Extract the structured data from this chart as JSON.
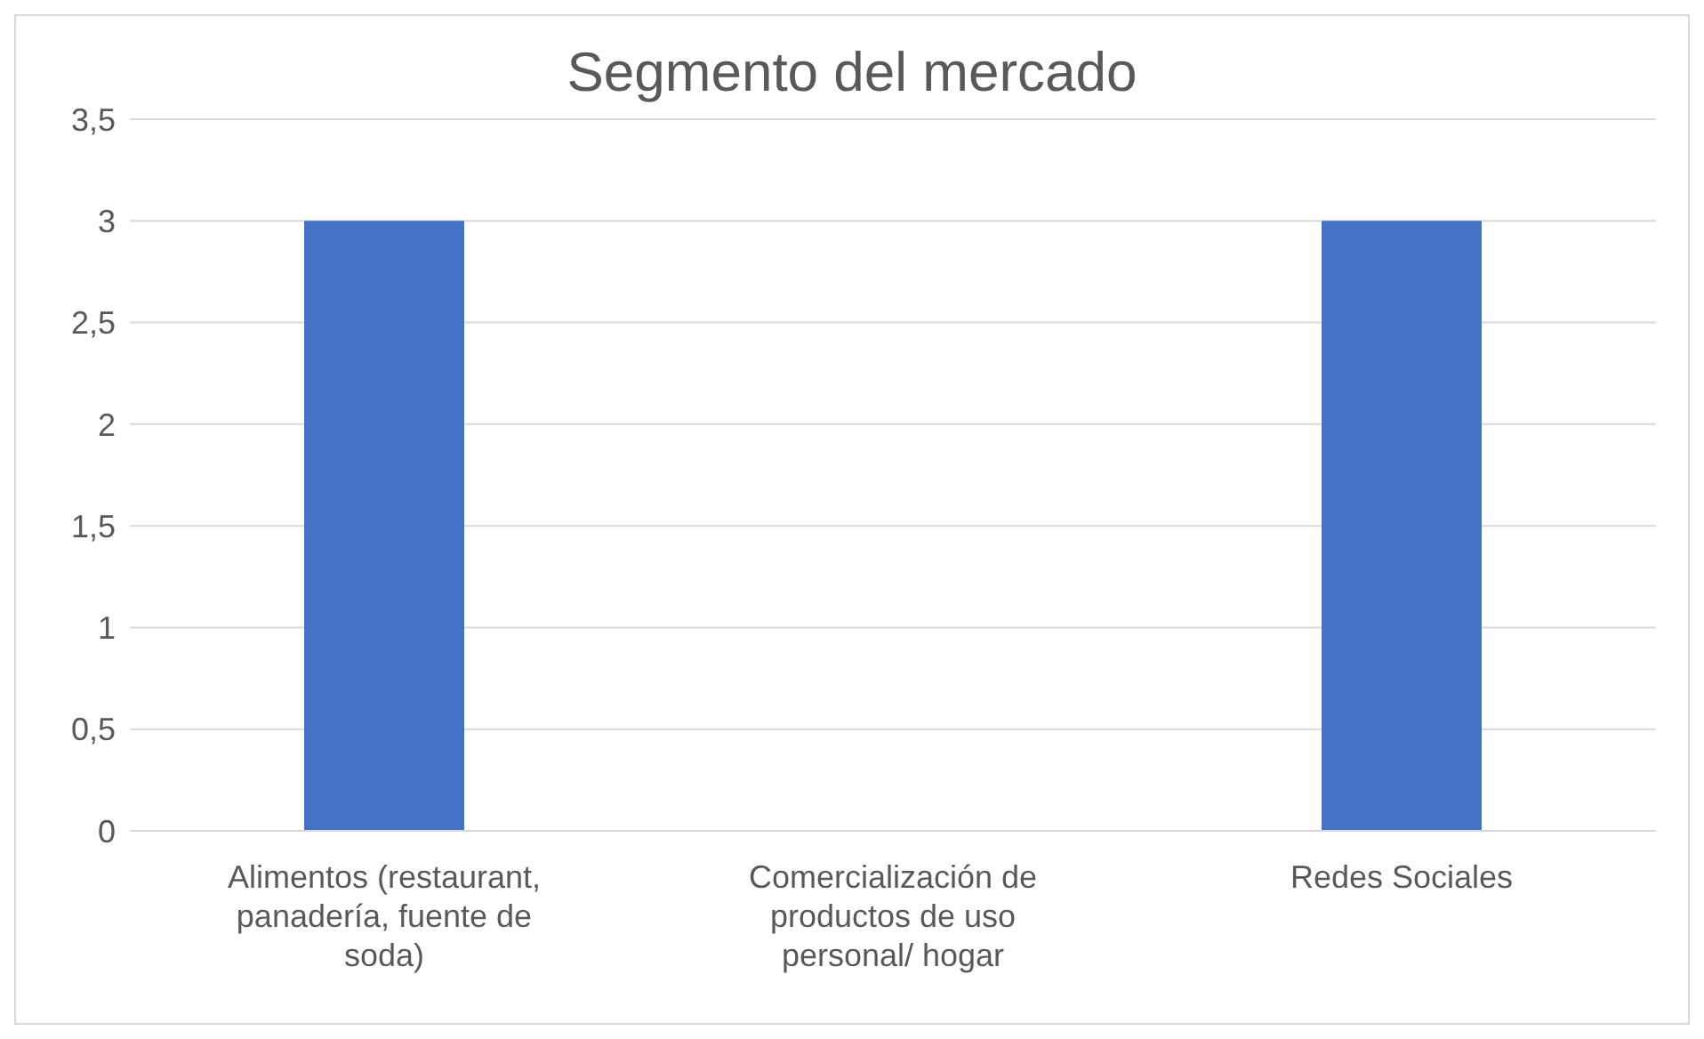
{
  "chart_data": {
    "type": "bar",
    "title": "Segmento del mercado",
    "categories": [
      "Alimentos (restaurant, panadería, fuente de soda)",
      "Comercialización de productos de uso personal/ hogar",
      "Redes Sociales"
    ],
    "values": [
      3,
      0,
      3
    ],
    "color": "#4472c4",
    "ylim": [
      0,
      3.5
    ],
    "yticks": [
      0,
      {
        "value": 0.5,
        "label": "0,5"
      },
      1,
      {
        "value": 1.5,
        "label": "1,5"
      },
      2,
      {
        "value": 2.5,
        "label": "2,5"
      },
      3,
      {
        "value": 3.5,
        "label": "3,5"
      }
    ],
    "grid": "y"
  }
}
